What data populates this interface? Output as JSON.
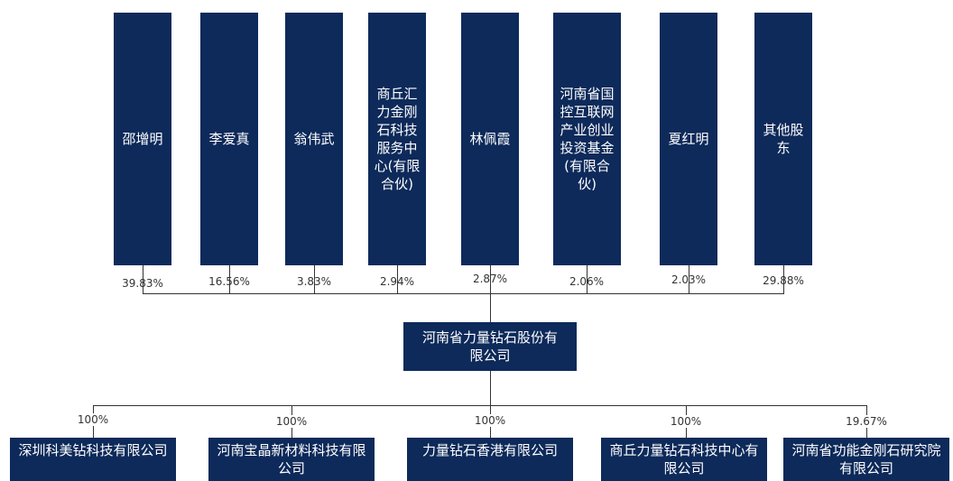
{
  "colors": {
    "box_fill": "#0d2a5a",
    "box_text": "#ffffff",
    "line": "#333333"
  },
  "shareholders": [
    {
      "name": "邵增明",
      "pct": "39.83%"
    },
    {
      "name": "李爱真",
      "pct": "16.56%"
    },
    {
      "name": "翁伟武",
      "pct": "3.83%"
    },
    {
      "name": "商丘汇力金刚石科技服务中心(有限合伙)",
      "pct": "2.94%"
    },
    {
      "name": "林佩霞",
      "pct": "2.87%"
    },
    {
      "name": "河南省国控互联网产业创业投资基金(有限合伙)",
      "pct": "2.06%"
    },
    {
      "name": "夏红明",
      "pct": "2.03%"
    },
    {
      "name": "其他股东",
      "pct": "29.88%"
    }
  ],
  "company": {
    "name": "河南省力量钻石股份有限公司"
  },
  "subsidiaries": [
    {
      "name": "深圳科美钻科技有限公司",
      "pct": "100%"
    },
    {
      "name": "河南宝晶新材料科技有限公司",
      "pct": "100%"
    },
    {
      "name": "力量钻石香港有限公司",
      "pct": "100%"
    },
    {
      "name": "商丘力量钻石科技中心有限公司",
      "pct": "100%"
    },
    {
      "name": "河南省功能金刚石研究院有限公司",
      "pct": "19.67%"
    }
  ]
}
